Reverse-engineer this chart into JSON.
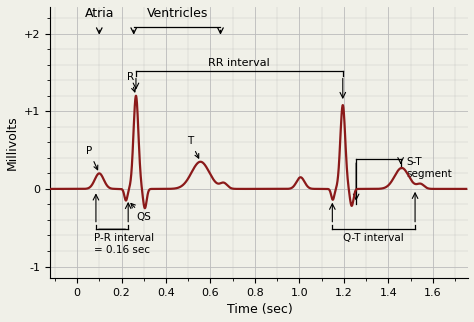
{
  "xlabel": "Time (sec)",
  "ylabel": "Millivolts",
  "xlim": [
    -0.12,
    1.76
  ],
  "ylim": [
    -1.15,
    2.35
  ],
  "yticks": [
    -1,
    0,
    1,
    2
  ],
  "yticklabels": [
    "-1",
    "0",
    "+1",
    "+2"
  ],
  "xticks": [
    0,
    0.2,
    0.4,
    0.6,
    0.8,
    1.0,
    1.2,
    1.4,
    1.6
  ],
  "ecg_color": "#8B1A1A",
  "grid_color": "#bbbbbb",
  "background_color": "#f0f0e8",
  "line_width": 1.6
}
